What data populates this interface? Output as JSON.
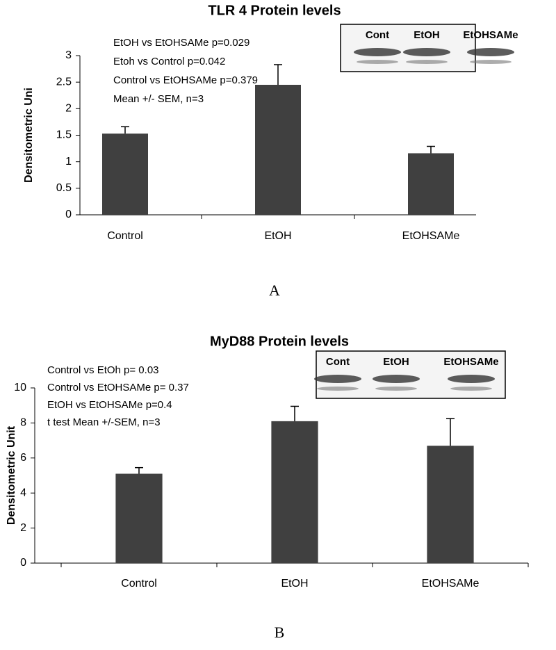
{
  "chart_data": [
    {
      "type": "bar",
      "title": "TLR 4 Protein levels",
      "y_label": "Densitometric Uni",
      "categories": [
        "Control",
        "EtOH",
        "EtOHSAMe"
      ],
      "values": [
        1.53,
        2.45,
        1.16
      ],
      "errors": [
        0.13,
        0.38,
        0.13
      ],
      "color": "#404040",
      "ylim": [
        0,
        3
      ],
      "yticks": [
        0,
        0.5,
        1,
        1.5,
        2,
        2.5,
        3
      ],
      "annotations": [
        "EtOH vs EtOHSAMe p=0.029",
        "Etoh vs Control p=0.042",
        "Control vs EtOHSAMe p=0.379",
        "Mean +/- SEM, n=3"
      ],
      "blot_labels": [
        "Cont",
        "EtOH",
        "EtOHSAMe"
      ],
      "panel_label": "A"
    },
    {
      "type": "bar",
      "title": "MyD88 Protein levels",
      "y_label": "Densitometric Unit",
      "categories": [
        "Control",
        "EtOH",
        "EtOHSAMe"
      ],
      "values": [
        5.1,
        8.1,
        6.7
      ],
      "errors": [
        0.35,
        0.85,
        1.55
      ],
      "color": "#404040",
      "ylim": [
        0,
        10
      ],
      "yticks": [
        0,
        2,
        4,
        6,
        8,
        10
      ],
      "annotations": [
        "Control vs EtOh p= 0.03",
        "Control vs EtOHSAMe p= 0.37",
        "EtOH vs EtOHSAMe p=0.4",
        "t test Mean +/-SEM, n=3"
      ],
      "blot_labels": [
        "Cont",
        "EtOH",
        "EtOHSAMe"
      ],
      "panel_label": "B"
    }
  ]
}
